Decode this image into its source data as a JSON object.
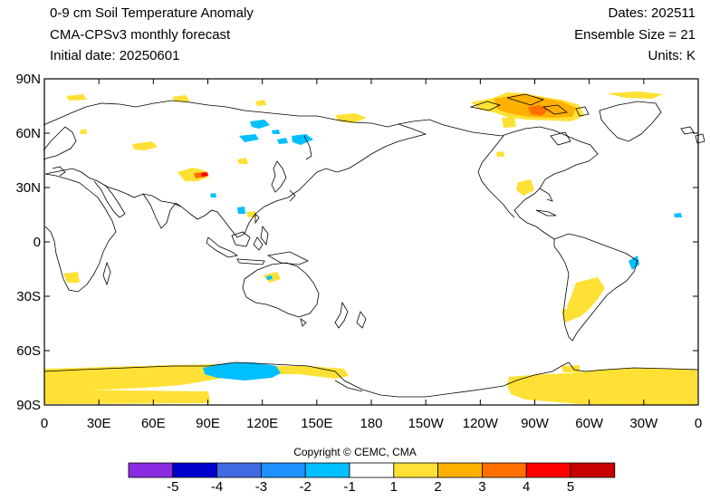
{
  "header": {
    "title": "0-9 cm Soil Temperature Anomaly",
    "subtitle": "CMA-CPSv3 monthly forecast",
    "initial_date": "Initial date: 20250601",
    "dates": "Dates: 202511",
    "ensemble": "Ensemble Size = 21",
    "units": "Units: K"
  },
  "map": {
    "lat_ticks": [
      "90N",
      "60N",
      "30N",
      "0",
      "30S",
      "60S",
      "90S"
    ],
    "lon_ticks": [
      "0",
      "30E",
      "60E",
      "90E",
      "120E",
      "150E",
      "180",
      "150W",
      "120W",
      "90W",
      "60W",
      "30W",
      "0"
    ],
    "background": "#ffffff",
    "coastline_color": "#000000"
  },
  "copyright": "Copyright © CEMC, CMA",
  "colorbar": {
    "labels": [
      "-5",
      "-4",
      "-3",
      "-2",
      "-1",
      "1",
      "2",
      "3",
      "4",
      "5"
    ],
    "colors": [
      "#8a2be2",
      "#0000cd",
      "#4169e1",
      "#1e90ff",
      "#00bfff",
      "#ffffff",
      "#ffe135",
      "#ffb000",
      "#ff7000",
      "#ff0000",
      "#c80000"
    ]
  }
}
